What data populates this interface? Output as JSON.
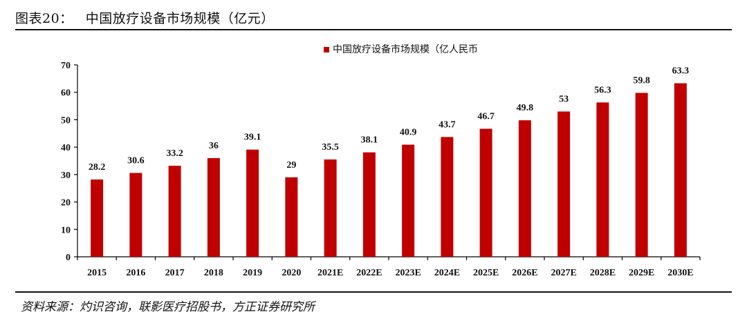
{
  "header": {
    "figure_number": "图表20：",
    "title": "中国放疗设备市场规模（亿元）"
  },
  "source": "资料来源：灼识咨询，联影医疗招股书，方正证券研究所",
  "colors": {
    "bar": "#C00000",
    "axis": "#000000",
    "text": "#111111"
  },
  "chart_data": {
    "type": "bar",
    "categories": [
      "2015",
      "2016",
      "2017",
      "2018",
      "2019",
      "2020",
      "2021E",
      "2022E",
      "2023E",
      "2024E",
      "2025E",
      "2026E",
      "2027E",
      "2028E",
      "2029E",
      "2030E"
    ],
    "series": [
      {
        "name": "中国放疗设备市场规模（亿人民币",
        "values": [
          28.2,
          30.6,
          33.2,
          36,
          39.1,
          29,
          35.5,
          38.1,
          40.9,
          43.7,
          46.7,
          49.8,
          53,
          56.3,
          59.8,
          63.3
        ]
      }
    ],
    "ylim": [
      0,
      70
    ],
    "yticks": [
      0,
      10,
      20,
      30,
      40,
      50,
      60,
      70
    ],
    "legend_position": "top-center",
    "grid": false
  }
}
